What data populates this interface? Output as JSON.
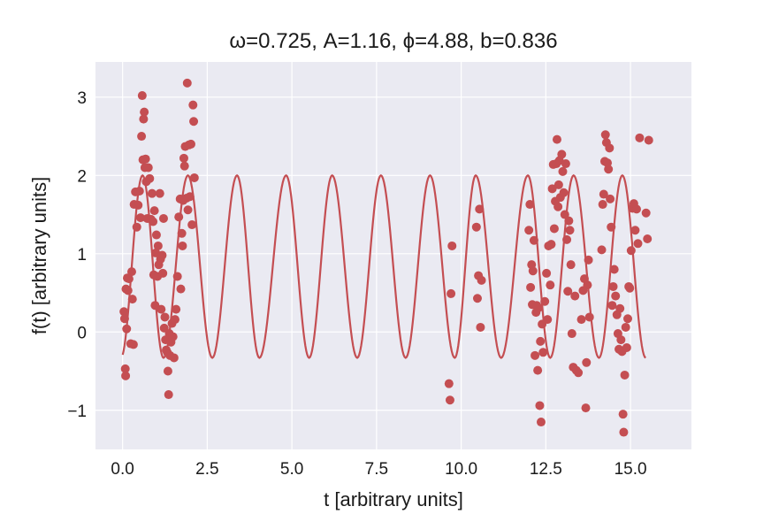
{
  "chart_data": {
    "type": "scatter",
    "title": "ω=0.725, A=1.16, ϕ=4.88, b=0.836",
    "xlabel": "t [arbitrary units]",
    "ylabel": "f(t) [arbitrary units]",
    "xlim": [
      -0.8,
      16.8
    ],
    "ylim": [
      -1.5,
      3.45
    ],
    "x_ticks": [
      0.0,
      2.5,
      5.0,
      7.5,
      10.0,
      12.5,
      15.0
    ],
    "x_tick_labels": [
      "0.0",
      "2.5",
      "5.0",
      "7.5",
      "10.0",
      "12.5",
      "15.0"
    ],
    "y_ticks": [
      -1,
      0,
      1,
      2,
      3
    ],
    "y_tick_labels": [
      "−1",
      "0",
      "1",
      "2",
      "3"
    ],
    "grid": true,
    "colors": {
      "background": "#eaeaf2",
      "grid": "#ffffff",
      "series": "#c44e52"
    },
    "fit": {
      "omega": 0.725,
      "A": 1.16,
      "phi": 4.88,
      "b": 0.836,
      "x_range": [
        0.0,
        16.0
      ],
      "y_min": -0.33,
      "y_max": 2.0,
      "peaks": [
        0.59,
        1.93,
        3.38,
        4.83,
        6.19,
        7.63,
        9.08,
        10.43,
        11.97,
        13.32,
        14.76
      ],
      "troughs": [
        -0.05,
        1.21,
        2.65,
        4.04,
        5.51,
        6.93,
        8.36,
        9.81,
        11.18,
        12.63,
        14.07,
        15.45
      ]
    },
    "points": [
      {
        "x": 0.04,
        "y": 0.26
      },
      {
        "x": 0.06,
        "y": 0.17
      },
      {
        "x": 0.08,
        "y": -0.47
      },
      {
        "x": 0.09,
        "y": -0.56
      },
      {
        "x": 0.1,
        "y": 0.55
      },
      {
        "x": 0.12,
        "y": 0.04
      },
      {
        "x": 0.14,
        "y": 0.69
      },
      {
        "x": 0.16,
        "y": 0.53
      },
      {
        "x": 0.19,
        "y": 0.68
      },
      {
        "x": 0.24,
        "y": -0.15
      },
      {
        "x": 0.27,
        "y": 0.77
      },
      {
        "x": 0.29,
        "y": 0.42
      },
      {
        "x": 0.32,
        "y": -0.16
      },
      {
        "x": 0.34,
        "y": 1.63
      },
      {
        "x": 0.38,
        "y": 1.79
      },
      {
        "x": 0.42,
        "y": 1.34
      },
      {
        "x": 0.46,
        "y": 1.62
      },
      {
        "x": 0.5,
        "y": 1.8
      },
      {
        "x": 0.53,
        "y": 1.46
      },
      {
        "x": 0.56,
        "y": 2.5
      },
      {
        "x": 0.58,
        "y": 3.02
      },
      {
        "x": 0.6,
        "y": 2.2
      },
      {
        "x": 0.62,
        "y": 2.72
      },
      {
        "x": 0.64,
        "y": 2.81
      },
      {
        "x": 0.66,
        "y": 2.1
      },
      {
        "x": 0.68,
        "y": 2.21
      },
      {
        "x": 0.7,
        "y": 1.92
      },
      {
        "x": 0.73,
        "y": 1.45
      },
      {
        "x": 0.76,
        "y": 2.1
      },
      {
        "x": 0.8,
        "y": 1.96
      },
      {
        "x": 0.84,
        "y": 1.44
      },
      {
        "x": 0.87,
        "y": 1.77
      },
      {
        "x": 0.9,
        "y": 1.41
      },
      {
        "x": 0.92,
        "y": 0.73
      },
      {
        "x": 0.94,
        "y": 1.55
      },
      {
        "x": 0.96,
        "y": 0.34
      },
      {
        "x": 0.98,
        "y": 1.01
      },
      {
        "x": 1.0,
        "y": 1.24
      },
      {
        "x": 1.03,
        "y": 0.71
      },
      {
        "x": 1.05,
        "y": 1.1
      },
      {
        "x": 1.07,
        "y": 0.86
      },
      {
        "x": 1.1,
        "y": 1.77
      },
      {
        "x": 1.12,
        "y": 0.93
      },
      {
        "x": 1.14,
        "y": 0.29
      },
      {
        "x": 1.17,
        "y": 0.98
      },
      {
        "x": 1.19,
        "y": 0.75
      },
      {
        "x": 1.21,
        "y": 1.45
      },
      {
        "x": 1.23,
        "y": 0.05
      },
      {
        "x": 1.25,
        "y": 0.19
      },
      {
        "x": 1.27,
        "y": -0.1
      },
      {
        "x": 1.29,
        "y": -0.23
      },
      {
        "x": 1.32,
        "y": -0.26
      },
      {
        "x": 1.34,
        "y": -0.5
      },
      {
        "x": 1.36,
        "y": -0.8
      },
      {
        "x": 1.38,
        "y": -0.02
      },
      {
        "x": 1.4,
        "y": -0.3
      },
      {
        "x": 1.43,
        "y": -0.13
      },
      {
        "x": 1.46,
        "y": 0.11
      },
      {
        "x": 1.49,
        "y": -0.06
      },
      {
        "x": 1.52,
        "y": -0.33
      },
      {
        "x": 1.55,
        "y": 0.16
      },
      {
        "x": 1.58,
        "y": 0.29
      },
      {
        "x": 1.62,
        "y": 0.71
      },
      {
        "x": 1.66,
        "y": 1.47
      },
      {
        "x": 1.7,
        "y": 1.7
      },
      {
        "x": 1.72,
        "y": 0.55
      },
      {
        "x": 1.75,
        "y": 1.26
      },
      {
        "x": 1.77,
        "y": 1.1
      },
      {
        "x": 1.79,
        "y": 1.68
      },
      {
        "x": 1.81,
        "y": 2.22
      },
      {
        "x": 1.83,
        "y": 2.12
      },
      {
        "x": 1.85,
        "y": 2.37
      },
      {
        "x": 1.89,
        "y": 1.71
      },
      {
        "x": 1.91,
        "y": 3.18
      },
      {
        "x": 1.93,
        "y": 1.56
      },
      {
        "x": 1.96,
        "y": 2.39
      },
      {
        "x": 1.99,
        "y": 1.73
      },
      {
        "x": 2.02,
        "y": 2.4
      },
      {
        "x": 2.05,
        "y": 1.37
      },
      {
        "x": 2.08,
        "y": 2.9
      },
      {
        "x": 2.1,
        "y": 2.69
      },
      {
        "x": 2.12,
        "y": 1.97
      },
      {
        "x": 9.64,
        "y": -0.66
      },
      {
        "x": 9.67,
        "y": -0.87
      },
      {
        "x": 9.7,
        "y": 0.49
      },
      {
        "x": 9.73,
        "y": 1.1
      },
      {
        "x": 10.45,
        "y": 1.34
      },
      {
        "x": 10.48,
        "y": 0.43
      },
      {
        "x": 10.51,
        "y": 0.72
      },
      {
        "x": 10.54,
        "y": 1.57
      },
      {
        "x": 10.57,
        "y": 0.06
      },
      {
        "x": 10.6,
        "y": 0.66
      },
      {
        "x": 12.0,
        "y": 1.3
      },
      {
        "x": 12.03,
        "y": 1.63
      },
      {
        "x": 12.05,
        "y": 0.57
      },
      {
        "x": 12.08,
        "y": 0.86
      },
      {
        "x": 12.1,
        "y": 0.35
      },
      {
        "x": 12.12,
        "y": 0.78
      },
      {
        "x": 12.15,
        "y": 1.17
      },
      {
        "x": 12.18,
        "y": -0.3
      },
      {
        "x": 12.21,
        "y": 0.25
      },
      {
        "x": 12.23,
        "y": 0.34
      },
      {
        "x": 12.26,
        "y": -0.49
      },
      {
        "x": 12.29,
        "y": 0.31
      },
      {
        "x": 12.32,
        "y": -0.94
      },
      {
        "x": 12.34,
        "y": -0.12
      },
      {
        "x": 12.36,
        "y": -1.15
      },
      {
        "x": 12.39,
        "y": 0.1
      },
      {
        "x": 12.42,
        "y": -0.26
      },
      {
        "x": 12.47,
        "y": 0.39
      },
      {
        "x": 12.52,
        "y": 0.75
      },
      {
        "x": 12.55,
        "y": 0.16
      },
      {
        "x": 12.58,
        "y": 1.1
      },
      {
        "x": 12.63,
        "y": 0.6
      },
      {
        "x": 12.66,
        "y": 1.12
      },
      {
        "x": 12.69,
        "y": 1.83
      },
      {
        "x": 12.72,
        "y": 2.14
      },
      {
        "x": 12.75,
        "y": 1.32
      },
      {
        "x": 12.78,
        "y": 1.67
      },
      {
        "x": 12.81,
        "y": 2.15
      },
      {
        "x": 12.83,
        "y": 2.46
      },
      {
        "x": 12.86,
        "y": 1.6
      },
      {
        "x": 12.88,
        "y": 1.88
      },
      {
        "x": 12.9,
        "y": 2.19
      },
      {
        "x": 12.93,
        "y": 1.72
      },
      {
        "x": 12.97,
        "y": 2.27
      },
      {
        "x": 13.0,
        "y": 2.05
      },
      {
        "x": 13.03,
        "y": 1.78
      },
      {
        "x": 13.06,
        "y": 1.5
      },
      {
        "x": 13.09,
        "y": 2.15
      },
      {
        "x": 13.12,
        "y": 1.18
      },
      {
        "x": 13.15,
        "y": 0.52
      },
      {
        "x": 13.18,
        "y": 1.42
      },
      {
        "x": 13.21,
        "y": 1.3
      },
      {
        "x": 13.24,
        "y": 0.86
      },
      {
        "x": 13.27,
        "y": -0.02
      },
      {
        "x": 13.31,
        "y": -0.45
      },
      {
        "x": 13.36,
        "y": 0.46
      },
      {
        "x": 13.4,
        "y": -0.49
      },
      {
        "x": 13.46,
        "y": -0.52
      },
      {
        "x": 13.55,
        "y": 0.16
      },
      {
        "x": 13.6,
        "y": 0.53
      },
      {
        "x": 13.64,
        "y": 0.68
      },
      {
        "x": 13.68,
        "y": -0.97
      },
      {
        "x": 13.7,
        "y": -0.39
      },
      {
        "x": 13.73,
        "y": 0.6
      },
      {
        "x": 13.76,
        "y": 0.92
      },
      {
        "x": 13.79,
        "y": 0.19
      },
      {
        "x": 14.15,
        "y": 1.05
      },
      {
        "x": 14.18,
        "y": 1.63
      },
      {
        "x": 14.21,
        "y": 1.76
      },
      {
        "x": 14.24,
        "y": 2.18
      },
      {
        "x": 14.26,
        "y": 2.52
      },
      {
        "x": 14.29,
        "y": 2.42
      },
      {
        "x": 14.32,
        "y": 2.16
      },
      {
        "x": 14.35,
        "y": 2.08
      },
      {
        "x": 14.38,
        "y": 2.35
      },
      {
        "x": 14.4,
        "y": 1.7
      },
      {
        "x": 14.43,
        "y": 1.34
      },
      {
        "x": 14.46,
        "y": 0.34
      },
      {
        "x": 14.49,
        "y": 0.58
      },
      {
        "x": 14.52,
        "y": 0.8
      },
      {
        "x": 14.56,
        "y": 0.46
      },
      {
        "x": 14.6,
        "y": 0.22
      },
      {
        "x": 14.63,
        "y": -0.02
      },
      {
        "x": 14.66,
        "y": -0.22
      },
      {
        "x": 14.69,
        "y": 0.3
      },
      {
        "x": 14.72,
        "y": -0.1
      },
      {
        "x": 14.75,
        "y": -0.25
      },
      {
        "x": 14.78,
        "y": -1.05
      },
      {
        "x": 14.8,
        "y": -1.28
      },
      {
        "x": 14.83,
        "y": -0.55
      },
      {
        "x": 14.86,
        "y": 0.06
      },
      {
        "x": 14.89,
        "y": -0.2
      },
      {
        "x": 14.92,
        "y": 0.17
      },
      {
        "x": 14.95,
        "y": 0.58
      },
      {
        "x": 14.98,
        "y": 0.56
      },
      {
        "x": 15.02,
        "y": 1.04
      },
      {
        "x": 15.06,
        "y": 1.58
      },
      {
        "x": 15.1,
        "y": 1.64
      },
      {
        "x": 15.14,
        "y": 1.3
      },
      {
        "x": 15.18,
        "y": 1.57
      },
      {
        "x": 15.22,
        "y": 1.13
      },
      {
        "x": 15.27,
        "y": 2.48
      },
      {
        "x": 15.46,
        "y": 1.52
      },
      {
        "x": 15.5,
        "y": 1.19
      },
      {
        "x": 15.54,
        "y": 2.45
      }
    ]
  }
}
